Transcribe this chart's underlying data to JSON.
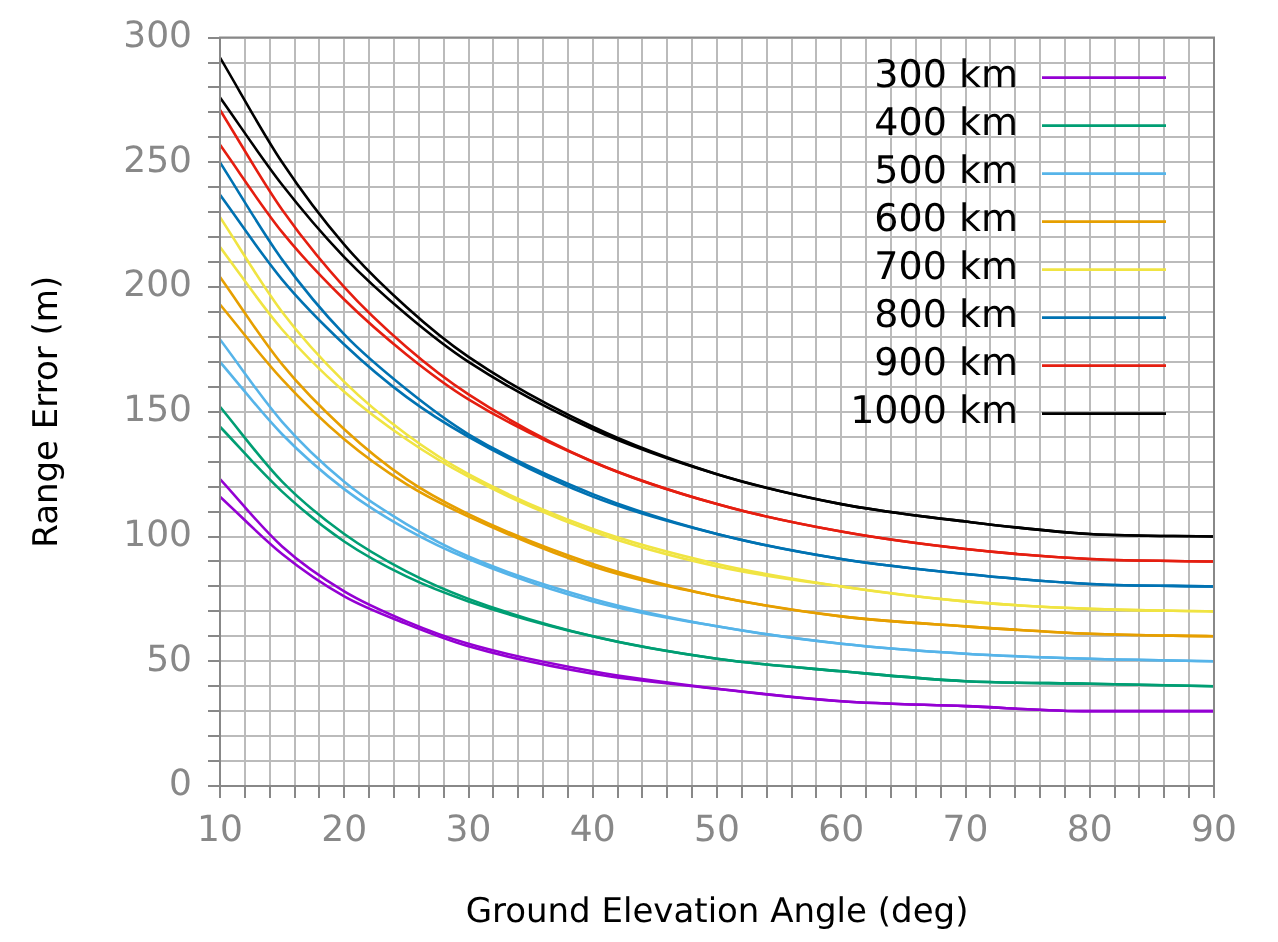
{
  "chart_data": {
    "type": "line",
    "xlabel": "Ground Elevation Angle (deg)",
    "ylabel": "Range Error (m)",
    "x": [
      10,
      15,
      20,
      25,
      30,
      40,
      50,
      60,
      70,
      80,
      90
    ],
    "xlim": [
      10,
      90
    ],
    "ylim": [
      0,
      300
    ],
    "xticks": [
      10,
      {
        "value": 12,
        "label": null
      },
      {
        "value": 14,
        "label": null
      },
      {
        "value": 16,
        "label": null
      },
      {
        "value": 18,
        "label": null
      },
      20,
      {
        "value": 22,
        "label": null
      },
      {
        "value": 24,
        "label": null
      },
      {
        "value": 26,
        "label": null
      },
      {
        "value": 28,
        "label": null
      },
      30,
      {
        "value": 32,
        "label": null
      },
      {
        "value": 34,
        "label": null
      },
      {
        "value": 36,
        "label": null
      },
      {
        "value": 38,
        "label": null
      },
      40,
      {
        "value": 42,
        "label": null
      },
      {
        "value": 44,
        "label": null
      },
      {
        "value": 46,
        "label": null
      },
      {
        "value": 48,
        "label": null
      },
      50,
      {
        "value": 52,
        "label": null
      },
      {
        "value": 54,
        "label": null
      },
      {
        "value": 56,
        "label": null
      },
      {
        "value": 58,
        "label": null
      },
      60,
      {
        "value": 62,
        "label": null
      },
      {
        "value": 64,
        "label": null
      },
      {
        "value": 66,
        "label": null
      },
      {
        "value": 68,
        "label": null
      },
      70,
      {
        "value": 72,
        "label": null
      },
      {
        "value": 74,
        "label": null
      },
      {
        "value": 76,
        "label": null
      },
      {
        "value": 78,
        "label": null
      },
      80,
      {
        "value": 82,
        "label": null
      },
      {
        "value": 84,
        "label": null
      },
      {
        "value": 86,
        "label": null
      },
      {
        "value": 88,
        "label": null
      },
      90
    ],
    "yticks": [
      0,
      {
        "value": 10,
        "label": null
      },
      {
        "value": 20,
        "label": null
      },
      {
        "value": 30,
        "label": null
      },
      {
        "value": 40,
        "label": null
      },
      50,
      {
        "value": 60,
        "label": null
      },
      {
        "value": 70,
        "label": null
      },
      {
        "value": 80,
        "label": null
      },
      {
        "value": 90,
        "label": null
      },
      100,
      {
        "value": 110,
        "label": null
      },
      {
        "value": 120,
        "label": null
      },
      {
        "value": 130,
        "label": null
      },
      {
        "value": 140,
        "label": null
      },
      150,
      {
        "value": 160,
        "label": null
      },
      {
        "value": 170,
        "label": null
      },
      {
        "value": 180,
        "label": null
      },
      {
        "value": 190,
        "label": null
      },
      200,
      {
        "value": 210,
        "label": null
      },
      {
        "value": 220,
        "label": null
      },
      {
        "value": 230,
        "label": null
      },
      {
        "value": 240,
        "label": null
      },
      250,
      {
        "value": 260,
        "label": null
      },
      {
        "value": 270,
        "label": null
      },
      {
        "value": 280,
        "label": null
      },
      {
        "value": 290,
        "label": null
      },
      300
    ],
    "grid": true,
    "legend": "top right",
    "marker": "none",
    "line_style": "solid",
    "series": [
      {
        "name": "300 km",
        "color": "#9400d3",
        "values": [
          123,
          96,
          78,
          66,
          57,
          46,
          39,
          34,
          32,
          30,
          30
        ]
      },
      {
        "color": "#9400d3",
        "values": [
          116,
          93,
          76,
          65,
          56,
          45,
          39,
          34,
          32,
          30,
          30
        ]
      },
      {
        "name": "400 km",
        "color": "#009e73",
        "values": [
          152,
          122,
          101,
          86,
          75,
          60,
          51,
          46,
          42,
          41,
          40
        ]
      },
      {
        "color": "#009e73",
        "values": [
          144,
          118,
          98,
          84,
          74,
          60,
          51,
          46,
          42,
          41,
          40
        ]
      },
      {
        "name": "500 km",
        "color": "#56b4e9",
        "values": [
          179,
          146,
          122,
          105,
          92,
          75,
          64,
          57,
          53,
          51,
          50
        ]
      },
      {
        "color": "#56b4e9",
        "values": [
          170,
          141,
          119,
          103,
          91,
          74,
          64,
          57,
          53,
          51,
          50
        ]
      },
      {
        "name": "600 km",
        "color": "#e69f00",
        "values": [
          204,
          169,
          143,
          123,
          109,
          89,
          76,
          68,
          64,
          61,
          60
        ]
      },
      {
        "color": "#e69f00",
        "values": [
          193,
          163,
          139,
          121,
          108,
          88,
          76,
          68,
          64,
          61,
          60
        ]
      },
      {
        "name": "700 km",
        "color": "#f0e442",
        "values": [
          228,
          190,
          162,
          141,
          125,
          103,
          89,
          80,
          74,
          71,
          70
        ]
      },
      {
        "color": "#f0e442",
        "values": [
          216,
          183,
          158,
          139,
          124,
          102,
          88,
          80,
          74,
          71,
          70
        ]
      },
      {
        "name": "800 km",
        "color": "#0072b2",
        "values": [
          250,
          211,
          181,
          159,
          141,
          117,
          101,
          91,
          85,
          81,
          80
        ]
      },
      {
        "color": "#0072b2",
        "values": [
          237,
          203,
          177,
          156,
          140,
          116,
          101,
          91,
          85,
          81,
          80
        ]
      },
      {
        "name": "900 km",
        "color": "#e51e10",
        "values": [
          271,
          231,
          200,
          176,
          157,
          130,
          113,
          102,
          95,
          91,
          90
        ]
      },
      {
        "color": "#e51e10",
        "values": [
          257,
          222,
          195,
          173,
          155,
          130,
          113,
          102,
          95,
          91,
          90
        ]
      },
      {
        "name": "1000 km",
        "color": "#000000",
        "values": [
          292,
          250,
          217,
          192,
          172,
          144,
          125,
          113,
          106,
          101,
          100
        ]
      },
      {
        "color": "#000000",
        "values": [
          276,
          241,
          212,
          189,
          170,
          143,
          125,
          113,
          106,
          101,
          100
        ]
      }
    ]
  }
}
